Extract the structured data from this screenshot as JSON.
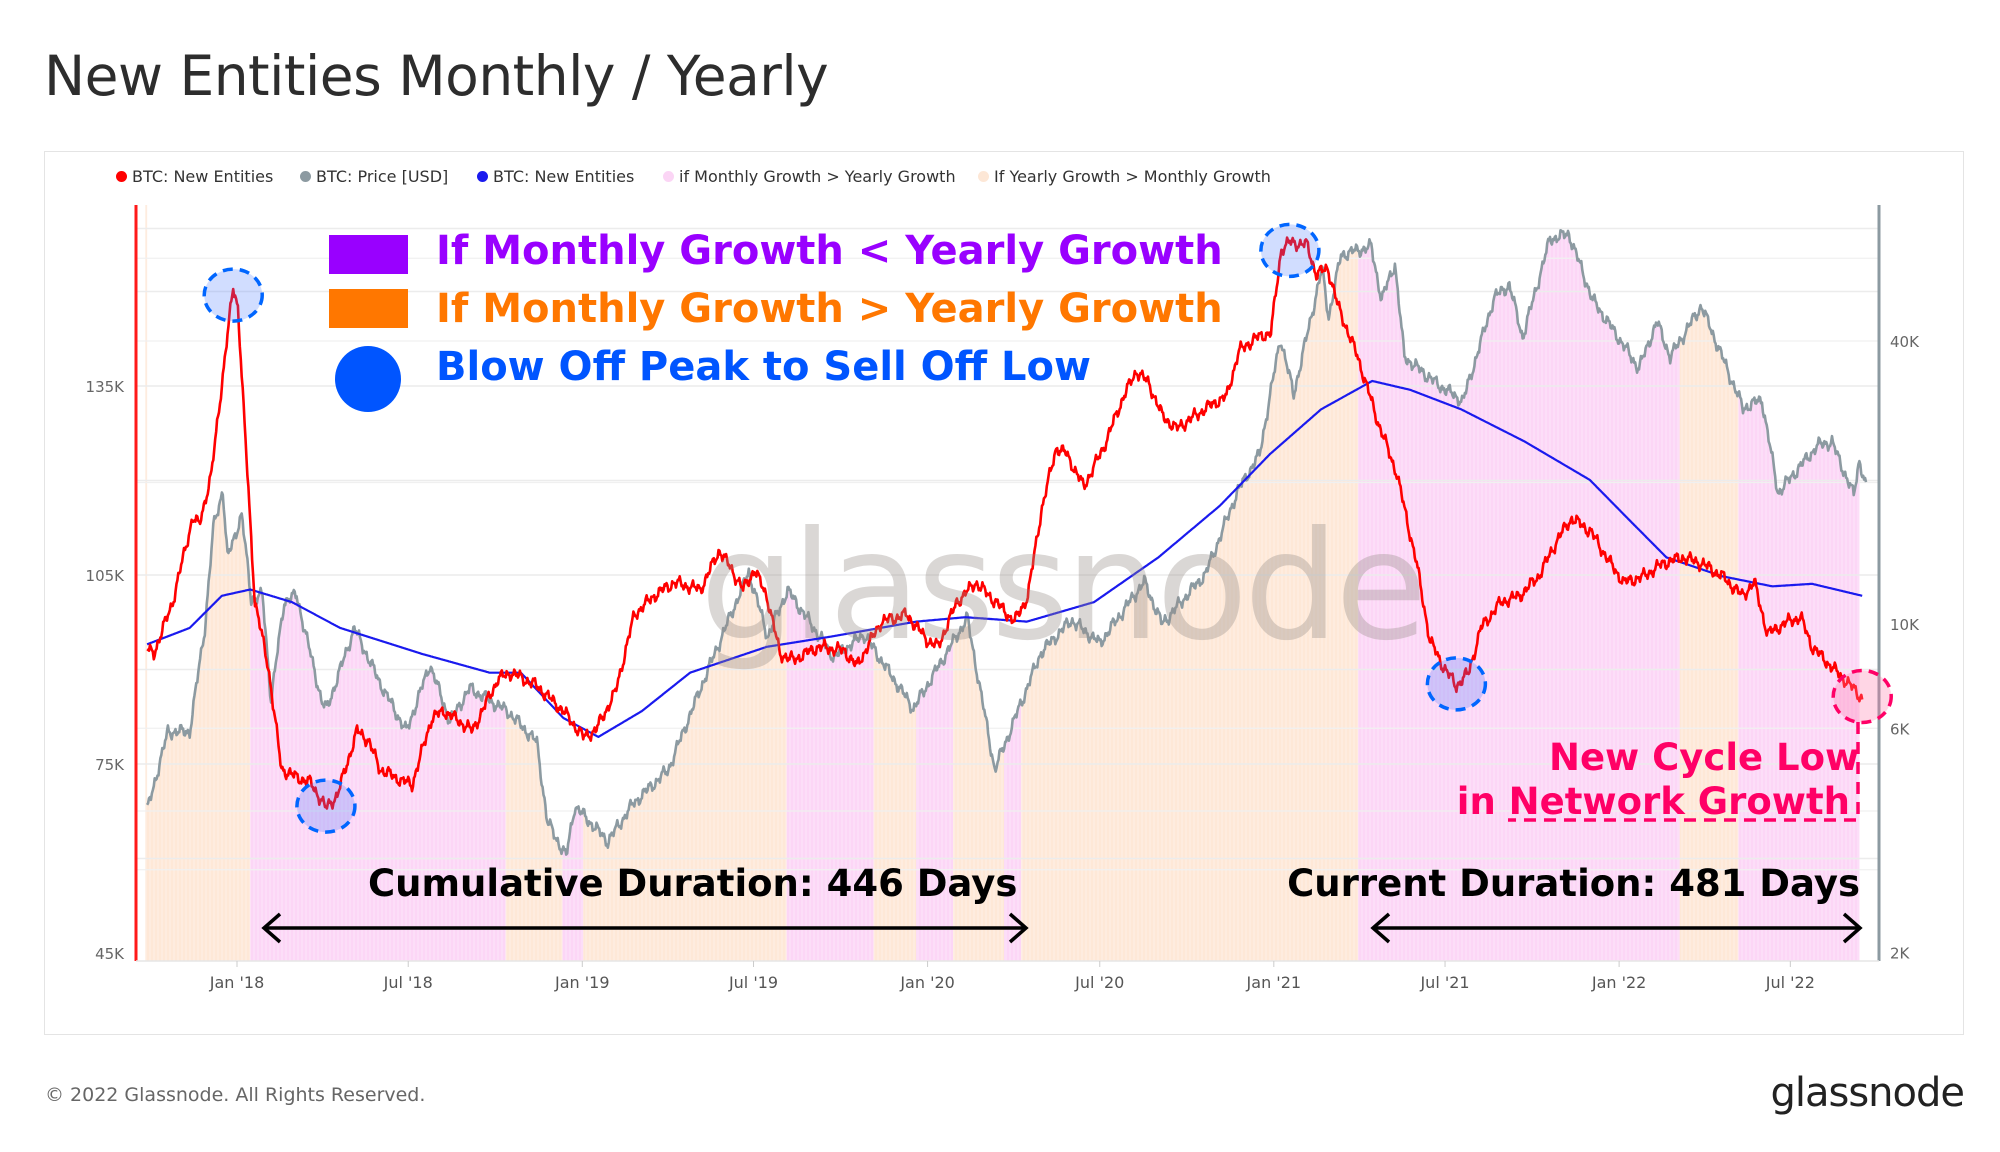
{
  "page": {
    "title": "New Entities Monthly / Yearly",
    "footer": "© 2022 Glassnode. All Rights Reserved.",
    "logo": "glassnode",
    "watermark": "glassnode"
  },
  "legend": [
    {
      "label": "BTC: New Entities",
      "color": "#ff0000"
    },
    {
      "label": "BTC: Price [USD]",
      "color": "#8c9aa1"
    },
    {
      "label": "BTC: New Entities",
      "color": "#1a1aee"
    },
    {
      "label": "if Monthly Growth > Yearly Growth",
      "color": "#fbd5f5"
    },
    {
      "label": "If Yearly Growth > Monthly Growth",
      "color": "#fde7d6"
    }
  ],
  "annotations": {
    "key_purple": "If Monthly Growth < Yearly Growth",
    "key_orange": "If Monthly Growth > Yearly Growth",
    "key_blue": "Blow Off Peak to Sell Off Low",
    "new_cycle_low_1": "New Cycle Low",
    "new_cycle_low_2": "in Network Growth",
    "cumulative_duration": "Cumulative Duration: 446 Days",
    "current_duration": "Current Duration: 481 Days",
    "colors": {
      "purple": "#9900ff",
      "orange": "#ff7700",
      "blue": "#0055ff",
      "pink": "#ff0066"
    }
  },
  "chart_data": {
    "type": "line",
    "title": "New Entities Monthly / Yearly",
    "x_ticks": [
      "Jan '18",
      "Jul '18",
      "Jan '19",
      "Jul '19",
      "Jan '20",
      "Jul '20",
      "Jan '21",
      "Jul '21",
      "Jan '22",
      "Jul '22"
    ],
    "x_tick_dates": [
      "2018-01-01",
      "2018-07-01",
      "2019-01-01",
      "2019-07-01",
      "2020-01-01",
      "2020-07-01",
      "2021-01-01",
      "2021-07-01",
      "2022-01-01",
      "2022-07-01"
    ],
    "y_left": {
      "label": "New Entities",
      "ticks": [
        "45K",
        "75K",
        "105K",
        "135K"
      ],
      "tick_values": [
        45,
        75,
        105,
        135
      ],
      "range": [
        44,
        164
      ],
      "unit": "K"
    },
    "y_right": {
      "label": "Price [USD]",
      "scale": "log",
      "ticks": [
        "2K",
        "6K",
        "10K",
        "40K"
      ],
      "tick_values": [
        2000,
        6000,
        10000,
        40000
      ],
      "range": [
        1920,
        78000
      ]
    },
    "grid": true,
    "legend_position": "top-left",
    "series": [
      {
        "name": "BTC: New Entities (monthly)",
        "axis": "left",
        "color": "#ff0000",
        "points": [
          [
            "2017-09-28",
            93.2
          ],
          [
            "2017-10-05",
            92.5
          ],
          [
            "2017-10-25",
            100.7
          ],
          [
            "2017-11-15",
            114
          ],
          [
            "2017-11-22",
            113
          ],
          [
            "2017-12-05",
            121
          ],
          [
            "2017-12-16",
            135.4
          ],
          [
            "2017-12-28",
            150.7
          ],
          [
            "2018-01-02",
            147.6
          ],
          [
            "2018-01-08",
            131.3
          ],
          [
            "2018-01-20",
            100.7
          ],
          [
            "2018-02-03",
            90.5
          ],
          [
            "2018-02-17",
            74.2
          ],
          [
            "2018-03-01",
            73.2
          ],
          [
            "2018-03-20",
            72
          ],
          [
            "2018-04-05",
            68
          ],
          [
            "2018-04-17",
            70
          ],
          [
            "2018-05-08",
            80.3
          ],
          [
            "2018-05-20",
            78.7
          ],
          [
            "2018-06-01",
            74.2
          ],
          [
            "2018-06-22",
            72.5
          ],
          [
            "2018-07-05",
            71.7
          ],
          [
            "2018-07-26",
            82.3
          ],
          [
            "2018-08-08",
            83.4
          ],
          [
            "2018-09-07",
            80.3
          ],
          [
            "2018-10-04",
            88.5
          ],
          [
            "2018-10-18",
            89.5
          ],
          [
            "2018-11-14",
            87.4
          ],
          [
            "2018-12-12",
            83.4
          ],
          [
            "2019-01-02",
            79.3
          ],
          [
            "2019-01-15",
            80.3
          ],
          [
            "2019-02-05",
            86.4
          ],
          [
            "2019-02-25",
            98.7
          ],
          [
            "2019-03-18",
            101.7
          ],
          [
            "2019-04-08",
            103.8
          ],
          [
            "2019-05-06",
            102.7
          ],
          [
            "2019-05-26",
            108.9
          ],
          [
            "2019-06-08",
            105.8
          ],
          [
            "2019-06-20",
            102.7
          ],
          [
            "2019-07-02",
            105.8
          ],
          [
            "2019-07-15",
            101.7
          ],
          [
            "2019-07-29",
            92.5
          ],
          [
            "2019-08-12",
            91.5
          ],
          [
            "2019-09-08",
            93.6
          ],
          [
            "2019-10-05",
            93
          ],
          [
            "2019-10-18",
            90.5
          ],
          [
            "2019-11-13",
            97.6
          ],
          [
            "2019-12-10",
            98.7
          ],
          [
            "2020-01-01",
            94.6
          ],
          [
            "2020-01-12",
            93.6
          ],
          [
            "2020-02-01",
            100.7
          ],
          [
            "2020-02-21",
            103.8
          ],
          [
            "2020-03-13",
            100.7
          ],
          [
            "2020-04-02",
            97.6
          ],
          [
            "2020-04-16",
            101.7
          ],
          [
            "2020-04-30",
            115
          ],
          [
            "2020-05-16",
            125.2
          ],
          [
            "2020-05-27",
            124.2
          ],
          [
            "2020-06-14",
            119
          ],
          [
            "2020-07-05",
            125.2
          ],
          [
            "2020-07-26",
            133.3
          ],
          [
            "2020-08-09",
            137.4
          ],
          [
            "2020-08-22",
            135.4
          ],
          [
            "2020-09-05",
            130.3
          ],
          [
            "2020-09-20",
            128.2
          ],
          [
            "2020-10-10",
            130.3
          ],
          [
            "2020-10-30",
            132.3
          ],
          [
            "2020-11-12",
            133.3
          ],
          [
            "2020-11-25",
            140.5
          ],
          [
            "2020-12-12",
            142.5
          ],
          [
            "2020-12-29",
            143.5
          ],
          [
            "2021-01-09",
            156.8
          ],
          [
            "2021-01-18",
            157.8
          ],
          [
            "2021-02-05",
            157.4
          ],
          [
            "2021-02-15",
            152.7
          ],
          [
            "2021-02-27",
            153.7
          ],
          [
            "2021-03-10",
            147.6
          ],
          [
            "2021-03-31",
            139.5
          ],
          [
            "2021-04-21",
            129.3
          ],
          [
            "2021-05-11",
            121.1
          ],
          [
            "2021-06-01",
            106.8
          ],
          [
            "2021-06-15",
            94.6
          ],
          [
            "2021-06-29",
            90.5
          ],
          [
            "2021-07-13",
            87.4
          ],
          [
            "2021-07-26",
            89.5
          ],
          [
            "2021-08-08",
            96.6
          ],
          [
            "2021-08-29",
            100.7
          ],
          [
            "2021-09-18",
            101.7
          ],
          [
            "2021-10-08",
            104.8
          ],
          [
            "2021-10-29",
            110.9
          ],
          [
            "2021-11-12",
            114
          ],
          [
            "2021-12-02",
            111.9
          ],
          [
            "2021-12-23",
            106.8
          ],
          [
            "2022-01-06",
            103.8
          ],
          [
            "2022-01-27",
            104.8
          ],
          [
            "2022-02-16",
            106.8
          ],
          [
            "2022-03-09",
            107.8
          ],
          [
            "2022-03-30",
            106.8
          ],
          [
            "2022-04-20",
            104.8
          ],
          [
            "2022-05-11",
            101.7
          ],
          [
            "2022-05-24",
            103.8
          ],
          [
            "2022-06-07",
            95.6
          ],
          [
            "2022-06-28",
            97.6
          ],
          [
            "2022-07-12",
            98.3
          ],
          [
            "2022-07-24",
            93.6
          ],
          [
            "2022-08-13",
            90.5
          ],
          [
            "2022-09-03",
            87.4
          ],
          [
            "2022-09-15",
            85.4
          ]
        ]
      },
      {
        "name": "BTC: Price [USD]",
        "axis": "right",
        "color": "#8c9aa1",
        "points": [
          [
            "2017-09-28",
            4000
          ],
          [
            "2017-10-20",
            5900
          ],
          [
            "2017-11-12",
            5900
          ],
          [
            "2017-11-28",
            9800
          ],
          [
            "2017-12-07",
            16000
          ],
          [
            "2017-12-17",
            19300
          ],
          [
            "2017-12-22",
            13800
          ],
          [
            "2018-01-06",
            17100
          ],
          [
            "2018-01-16",
            11300
          ],
          [
            "2018-01-28",
            11500
          ],
          [
            "2018-02-06",
            6900
          ],
          [
            "2018-02-20",
            11200
          ],
          [
            "2018-03-05",
            11500
          ],
          [
            "2018-04-01",
            6800
          ],
          [
            "2018-04-06",
            6600
          ],
          [
            "2018-05-05",
            9800
          ],
          [
            "2018-06-01",
            7500
          ],
          [
            "2018-06-29",
            5900
          ],
          [
            "2018-07-24",
            8200
          ],
          [
            "2018-08-14",
            6200
          ],
          [
            "2018-09-04",
            7300
          ],
          [
            "2018-10-15",
            6500
          ],
          [
            "2018-11-14",
            5600
          ],
          [
            "2018-11-25",
            3800
          ],
          [
            "2018-12-15",
            3200
          ],
          [
            "2018-12-24",
            4100
          ],
          [
            "2019-01-28",
            3450
          ],
          [
            "2019-02-24",
            4150
          ],
          [
            "2019-04-02",
            4900
          ],
          [
            "2019-05-14",
            8000
          ],
          [
            "2019-06-26",
            12900
          ],
          [
            "2019-07-16",
            9400
          ],
          [
            "2019-08-06",
            11800
          ],
          [
            "2019-09-24",
            8500
          ],
          [
            "2019-10-26",
            9500
          ],
          [
            "2019-12-17",
            6600
          ],
          [
            "2020-02-12",
            10300
          ],
          [
            "2020-03-12",
            4900
          ],
          [
            "2020-04-30",
            8700
          ],
          [
            "2020-06-01",
            10200
          ],
          [
            "2020-07-01",
            9100
          ],
          [
            "2020-08-17",
            12300
          ],
          [
            "2020-09-05",
            10000
          ],
          [
            "2020-10-21",
            12800
          ],
          [
            "2020-11-24",
            19200
          ],
          [
            "2020-12-17",
            23000
          ],
          [
            "2021-01-08",
            40600
          ],
          [
            "2021-01-22",
            30800
          ],
          [
            "2021-02-21",
            57000
          ],
          [
            "2021-02-28",
            45000
          ],
          [
            "2021-03-13",
            61000
          ],
          [
            "2021-04-14",
            63500
          ],
          [
            "2021-04-25",
            49000
          ],
          [
            "2021-05-09",
            58500
          ],
          [
            "2021-05-19",
            37000
          ],
          [
            "2021-06-22",
            32500
          ],
          [
            "2021-07-20",
            29800
          ],
          [
            "2021-08-22",
            49500
          ],
          [
            "2021-09-07",
            52700
          ],
          [
            "2021-09-21",
            40700
          ],
          [
            "2021-10-20",
            66000
          ],
          [
            "2021-11-09",
            67500
          ],
          [
            "2021-12-04",
            49000
          ],
          [
            "2022-01-22",
            35000
          ],
          [
            "2022-02-10",
            44000
          ],
          [
            "2022-02-24",
            37000
          ],
          [
            "2022-03-29",
            47500
          ],
          [
            "2022-05-12",
            28800
          ],
          [
            "2022-06-01",
            30000
          ],
          [
            "2022-06-18",
            19000
          ],
          [
            "2022-07-30",
            24000
          ],
          [
            "2022-08-14",
            24400
          ],
          [
            "2022-09-06",
            18800
          ],
          [
            "2022-09-12",
            22400
          ],
          [
            "2022-09-19",
            19500
          ]
        ]
      },
      {
        "name": "BTC: New Entities (yearly)",
        "axis": "left",
        "color": "#1a1aee",
        "points": [
          [
            "2017-09-28",
            94
          ],
          [
            "2017-11-12",
            96.6
          ],
          [
            "2017-12-16",
            101.7
          ],
          [
            "2018-01-15",
            102.7
          ],
          [
            "2018-02-28",
            100.7
          ],
          [
            "2018-04-20",
            96.6
          ],
          [
            "2018-07-15",
            92.5
          ],
          [
            "2018-09-25",
            89.5
          ],
          [
            "2018-10-28",
            89.5
          ],
          [
            "2018-12-12",
            82.3
          ],
          [
            "2019-01-18",
            79.3
          ],
          [
            "2019-03-05",
            83.4
          ],
          [
            "2019-04-25",
            89.5
          ],
          [
            "2019-07-15",
            93.6
          ],
          [
            "2019-09-20",
            95.2
          ],
          [
            "2019-12-20",
            97.6
          ],
          [
            "2020-02-10",
            98.3
          ],
          [
            "2020-04-15",
            97.6
          ],
          [
            "2020-06-25",
            100.7
          ],
          [
            "2020-09-01",
            107.8
          ],
          [
            "2020-11-05",
            116
          ],
          [
            "2020-12-28",
            124.2
          ],
          [
            "2021-02-20",
            131.3
          ],
          [
            "2021-04-15",
            135.8
          ],
          [
            "2021-05-25",
            134.4
          ],
          [
            "2021-07-18",
            131.3
          ],
          [
            "2021-09-23",
            126.2
          ],
          [
            "2021-12-01",
            120.1
          ],
          [
            "2022-01-10",
            114
          ],
          [
            "2022-02-20",
            107.8
          ],
          [
            "2022-04-20",
            104.8
          ],
          [
            "2022-06-12",
            103.2
          ],
          [
            "2022-07-24",
            103.6
          ],
          [
            "2022-09-15",
            101.7
          ]
        ]
      }
    ],
    "bands": [
      {
        "start": "2017-09-26",
        "end": "2018-01-15",
        "type": "yearly_gt_monthly"
      },
      {
        "start": "2018-01-15",
        "end": "2018-10-12",
        "type": "monthly_gt_yearly"
      },
      {
        "start": "2018-10-12",
        "end": "2018-12-11",
        "type": "yearly_gt_monthly"
      },
      {
        "start": "2018-12-11",
        "end": "2019-01-02",
        "type": "monthly_gt_yearly"
      },
      {
        "start": "2019-01-02",
        "end": "2019-08-05",
        "type": "yearly_gt_monthly"
      },
      {
        "start": "2019-08-05",
        "end": "2019-11-05",
        "type": "monthly_gt_yearly"
      },
      {
        "start": "2019-11-05",
        "end": "2019-12-20",
        "type": "yearly_gt_monthly"
      },
      {
        "start": "2019-12-20",
        "end": "2020-01-28",
        "type": "monthly_gt_yearly"
      },
      {
        "start": "2020-01-28",
        "end": "2020-03-22",
        "type": "yearly_gt_monthly"
      },
      {
        "start": "2020-03-22",
        "end": "2020-04-09",
        "type": "monthly_gt_yearly"
      },
      {
        "start": "2020-04-09",
        "end": "2021-03-31",
        "type": "yearly_gt_monthly"
      },
      {
        "start": "2021-03-31",
        "end": "2022-03-06",
        "type": "monthly_gt_yearly"
      },
      {
        "start": "2022-03-06",
        "end": "2022-05-07",
        "type": "yearly_gt_monthly"
      },
      {
        "start": "2022-05-07",
        "end": "2022-09-12",
        "type": "monthly_gt_yearly"
      }
    ],
    "highlights": [
      {
        "date": "2017-12-28",
        "series": 0,
        "kind": "peak"
      },
      {
        "date": "2018-04-05",
        "series": 0,
        "kind": "low"
      },
      {
        "date": "2021-01-18",
        "series": 0,
        "kind": "peak"
      },
      {
        "date": "2021-07-13",
        "series": 0,
        "kind": "low"
      },
      {
        "date": "2022-09-15",
        "series": 0,
        "kind": "new-cycle-low"
      }
    ]
  }
}
